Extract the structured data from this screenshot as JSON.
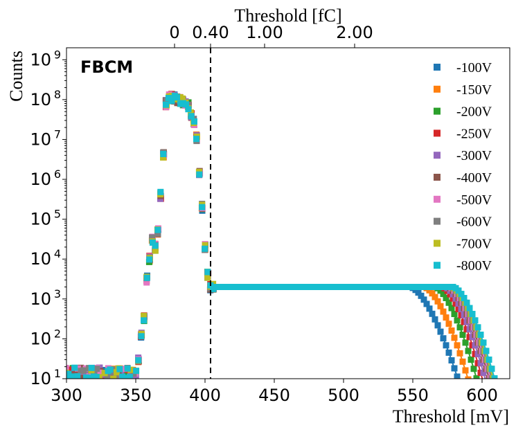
{
  "chart_data": {
    "type": "scatter",
    "annotation": "FBCM",
    "xlabel": "Threshold [mV]",
    "ylabel": "Counts",
    "xlim": [
      300,
      620
    ],
    "ylim_log10": [
      1,
      9.3
    ],
    "yscale": "log",
    "x_ticks": [
      300,
      350,
      400,
      450,
      500,
      550,
      600
    ],
    "x_tick_labels": [
      "300",
      "350",
      "400",
      "450",
      "500",
      "550",
      "600"
    ],
    "y_ticks_log10": [
      1,
      2,
      3,
      4,
      5,
      6,
      7,
      8,
      9
    ],
    "y_tick_labels": [
      {
        "base": "10",
        "exp": "1"
      },
      {
        "base": "10",
        "exp": "2"
      },
      {
        "base": "10",
        "exp": "3"
      },
      {
        "base": "10",
        "exp": "4"
      },
      {
        "base": "10",
        "exp": "5"
      },
      {
        "base": "10",
        "exp": "6"
      },
      {
        "base": "10",
        "exp": "7"
      },
      {
        "base": "10",
        "exp": "8"
      },
      {
        "base": "10",
        "exp": "9"
      }
    ],
    "secondary_x_axis": {
      "label": "Threshold [fC]",
      "ticks": [
        {
          "label": "0",
          "at_mV": 378
        },
        {
          "label": "0.40",
          "at_mV": 404
        },
        {
          "label": "1.00",
          "at_mV": 443
        },
        {
          "label": "2.00",
          "at_mV": 508
        }
      ]
    },
    "vertical_line": {
      "x": 404,
      "style": "dashed",
      "color": "#000000"
    },
    "noise_peak": {
      "x": [
        352,
        354,
        356,
        358,
        360,
        362,
        364,
        366,
        368,
        370,
        372,
        374,
        376,
        378,
        380,
        382,
        384,
        386,
        388,
        390,
        392,
        394,
        396,
        398,
        400,
        402,
        404,
        406
      ],
      "log10_counts": [
        1.5,
        2.1,
        2.5,
        3.5,
        4.0,
        4.5,
        4.3,
        4.7,
        5.6,
        6.6,
        7.9,
        8.05,
        8.05,
        8.04,
        8.0,
        7.98,
        7.94,
        7.9,
        7.85,
        7.62,
        7.45,
        7.05,
        6.2,
        5.3,
        4.3,
        3.6,
        3.3,
        3.3
      ]
    },
    "plateau_log10": 3.3,
    "series": [
      {
        "name": "-100V",
        "color": "#1f77b4",
        "drop_start_mV": 548,
        "drop_end_mV": 587
      },
      {
        "name": "-150V",
        "color": "#ff7f0e",
        "drop_start_mV": 558,
        "drop_end_mV": 594
      },
      {
        "name": "-200V",
        "color": "#2ca02c",
        "drop_start_mV": 566,
        "drop_end_mV": 600
      },
      {
        "name": "-250V",
        "color": "#d62728",
        "drop_start_mV": 571,
        "drop_end_mV": 604
      },
      {
        "name": "-300V",
        "color": "#9467bd",
        "drop_start_mV": 573,
        "drop_end_mV": 606
      },
      {
        "name": "-400V",
        "color": "#8c564b",
        "drop_start_mV": 575,
        "drop_end_mV": 609
      },
      {
        "name": "-500V",
        "color": "#e377c2",
        "drop_start_mV": 576,
        "drop_end_mV": 610
      },
      {
        "name": "-600V",
        "color": "#7f7f7f",
        "drop_start_mV": 577,
        "drop_end_mV": 611
      },
      {
        "name": "-700V",
        "color": "#bcbd22",
        "drop_start_mV": 578,
        "drop_end_mV": 612
      },
      {
        "name": "-800V",
        "color": "#17becf",
        "drop_start_mV": 579,
        "drop_end_mV": 613
      }
    ]
  }
}
